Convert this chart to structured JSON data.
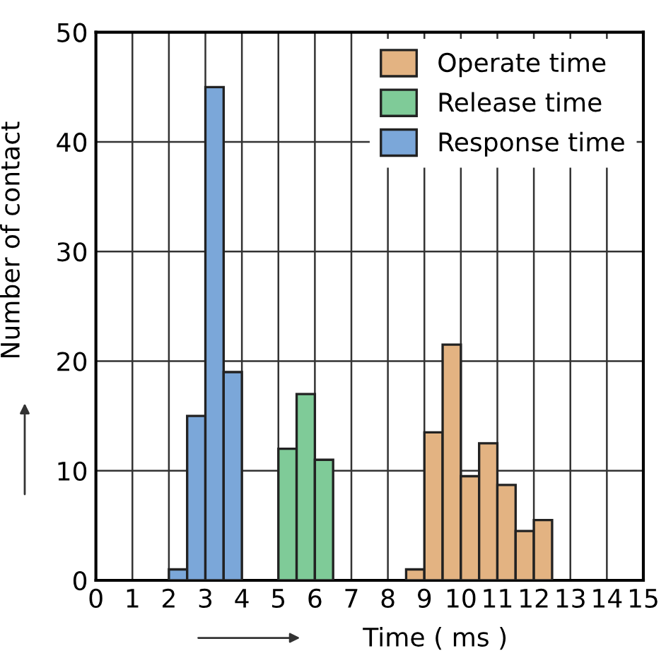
{
  "chart_data": {
    "type": "histogram",
    "xlabel": "Time ( ms )",
    "ylabel": "Number of contact",
    "xlim": [
      0,
      15
    ],
    "xticks": [
      0,
      1,
      2,
      3,
      4,
      5,
      6,
      7,
      8,
      9,
      10,
      11,
      12,
      13,
      14,
      15
    ],
    "ylim": [
      0,
      50
    ],
    "yticks": [
      0,
      10,
      20,
      30,
      40,
      50
    ],
    "grid": true,
    "legend": "top right",
    "bins": [
      2,
      2.5,
      3,
      3.5,
      4,
      4.5,
      5,
      5.5,
      6,
      6.5,
      7,
      7.5,
      8,
      8.5,
      9,
      9.5,
      10,
      10.5,
      11,
      11.5,
      12,
      12.5
    ],
    "series": [
      {
        "name": "Operate time",
        "color": "#e3b382",
        "values": [
          null,
          null,
          null,
          null,
          null,
          null,
          null,
          null,
          null,
          null,
          null,
          null,
          null,
          1,
          13.5,
          21.5,
          9.5,
          12.5,
          8.7,
          4.5,
          5.5
        ]
      },
      {
        "name": "Release time",
        "color": "#7fcb98",
        "values": [
          null,
          null,
          null,
          null,
          null,
          null,
          12,
          17,
          11,
          null,
          null,
          null,
          null,
          null,
          null,
          null,
          null,
          null,
          null,
          null,
          null
        ]
      },
      {
        "name": "Response time",
        "color": "#7ba7d9",
        "values": [
          1,
          15,
          45,
          19,
          null,
          null,
          null,
          null,
          null,
          null,
          null,
          null,
          null,
          null,
          null,
          null,
          null,
          null,
          null,
          null,
          null
        ]
      }
    ]
  }
}
